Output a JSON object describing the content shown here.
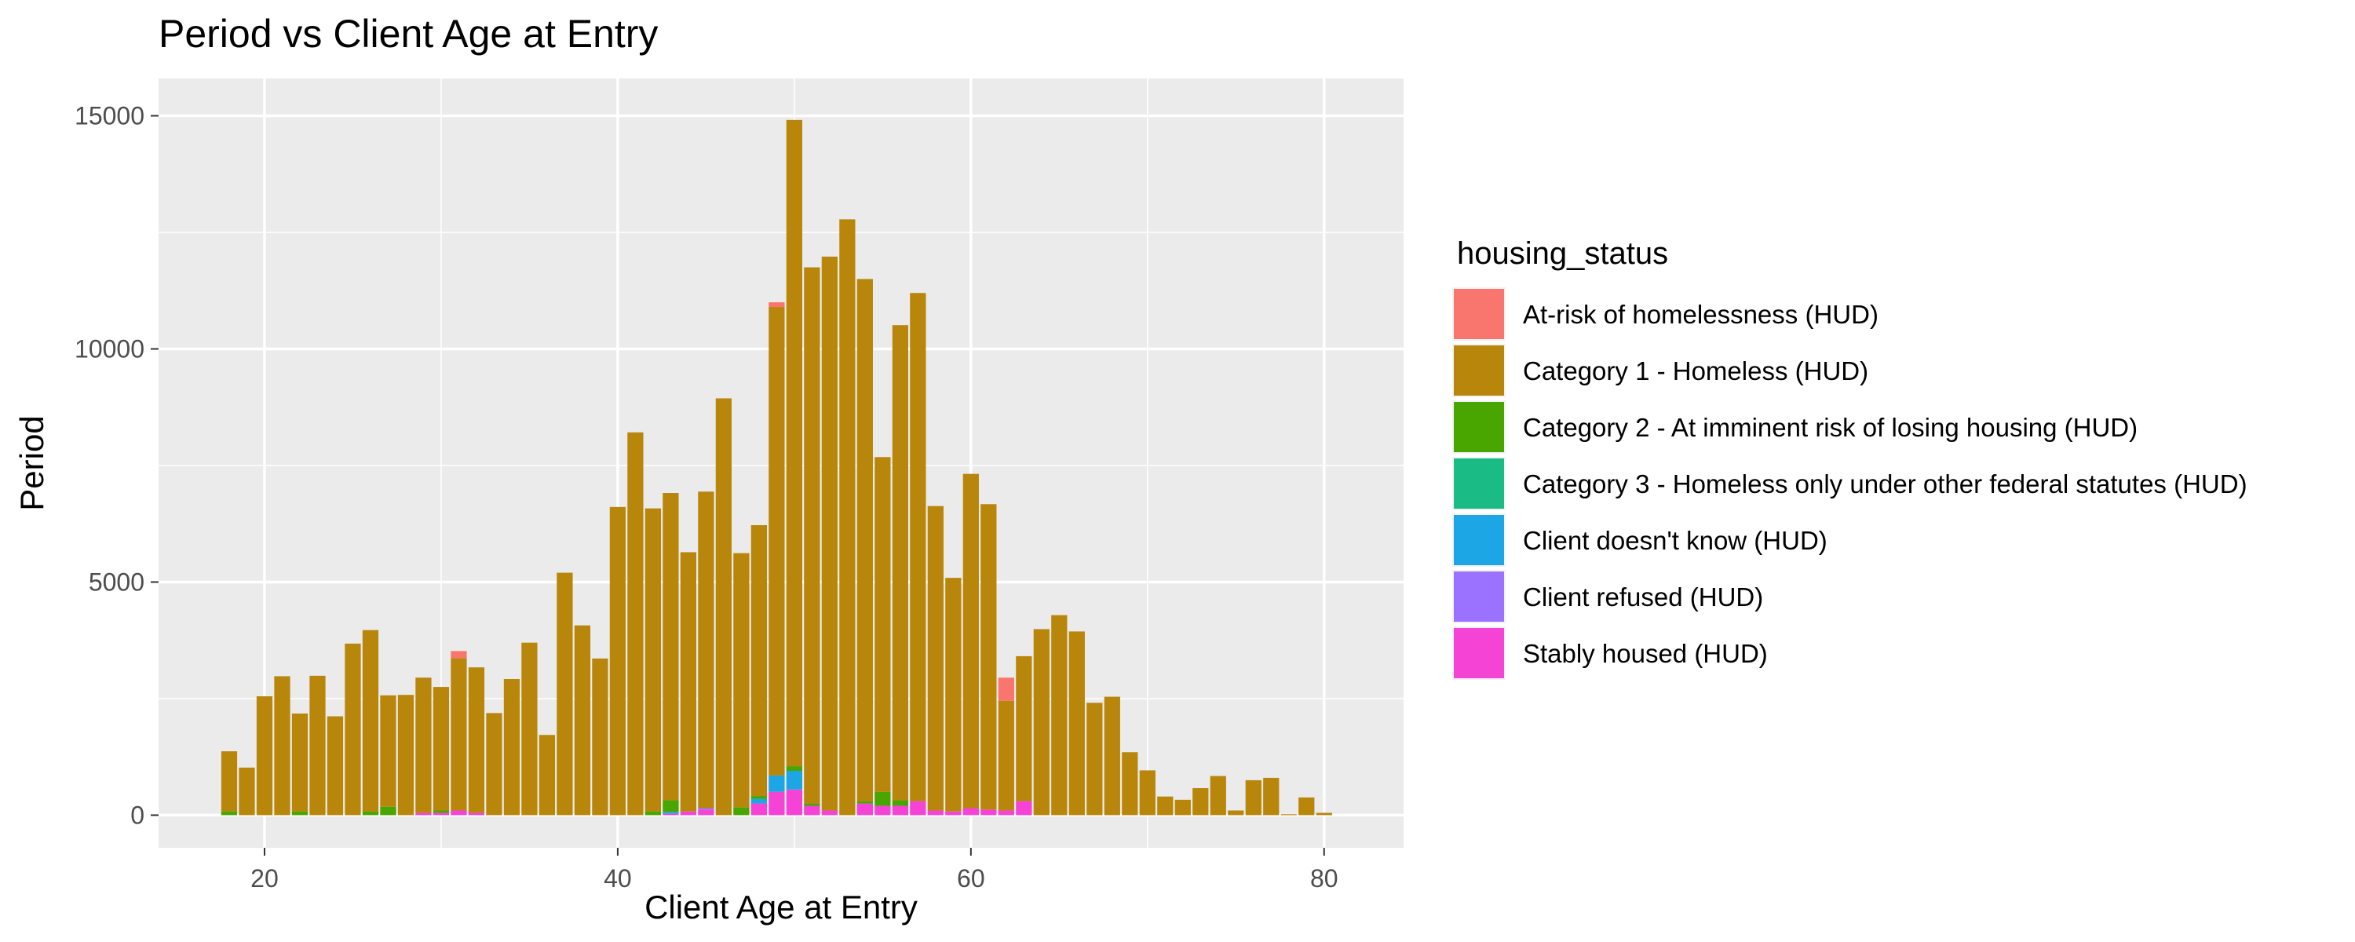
{
  "chart_data": {
    "type": "bar",
    "stacked": true,
    "title": "Period vs Client Age at Entry",
    "xlabel": "Client Age at Entry",
    "ylabel": "Period",
    "xlim": [
      14,
      84.5
    ],
    "ylim": [
      -700,
      15800
    ],
    "xticks": [
      20,
      40,
      60,
      80
    ],
    "yticks": [
      0,
      5000,
      10000,
      15000
    ],
    "grid": true,
    "legend": {
      "title": "housing_status",
      "position": "right",
      "entries": [
        {
          "label": "At-risk of homelessness (HUD)",
          "color": "#F8766D"
        },
        {
          "label": "Category 1 - Homeless (HUD)",
          "color": "#B8860B"
        },
        {
          "label": "Category 2 - At imminent risk of losing housing (HUD)",
          "color": "#49A500"
        },
        {
          "label": "Category 3 - Homeless only under other federal statutes (HUD)",
          "color": "#1ABB84"
        },
        {
          "label": "Client doesn't know (HUD)",
          "color": "#1CA6E6"
        },
        {
          "label": "Client refused (HUD)",
          "color": "#9B72FF"
        },
        {
          "label": "Stably housed (HUD)",
          "color": "#F543D6"
        }
      ]
    },
    "x": [
      18,
      19,
      20,
      21,
      22,
      23,
      24,
      25,
      26,
      27,
      28,
      29,
      30,
      31,
      32,
      33,
      34,
      35,
      36,
      37,
      38,
      39,
      40,
      41,
      42,
      43,
      44,
      45,
      46,
      47,
      48,
      49,
      50,
      51,
      52,
      53,
      54,
      55,
      56,
      57,
      58,
      59,
      60,
      61,
      62,
      63,
      64,
      65,
      66,
      67,
      68,
      69,
      70,
      71,
      72,
      73,
      74,
      75,
      76,
      77,
      78,
      79,
      80,
      81
    ],
    "series": [
      {
        "name": "At-risk of homelessness (HUD)",
        "values": [
          0,
          0,
          0,
          0,
          0,
          0,
          0,
          0,
          0,
          0,
          0,
          0,
          0,
          150,
          0,
          0,
          0,
          0,
          0,
          0,
          0,
          0,
          0,
          0,
          0,
          0,
          0,
          0,
          0,
          0,
          0,
          100,
          0,
          0,
          0,
          0,
          0,
          0,
          0,
          0,
          0,
          0,
          0,
          0,
          500,
          0,
          0,
          0,
          0,
          0,
          0,
          0,
          0,
          0,
          0,
          0,
          0,
          0,
          0,
          0,
          0,
          0,
          0,
          0
        ]
      },
      {
        "name": "Category 1 - Homeless (HUD)",
        "values": [
          1290,
          1020,
          2550,
          2980,
          2100,
          2990,
          2120,
          3680,
          3890,
          2390,
          2580,
          2900,
          2650,
          3270,
          3120,
          2190,
          2920,
          3700,
          1720,
          5200,
          4070,
          3360,
          6610,
          8210,
          6500,
          6590,
          5560,
          6790,
          8940,
          5450,
          5810,
          10050,
          13860,
          11500,
          11880,
          12780,
          11200,
          7180,
          10190,
          10900,
          6530,
          5010,
          7170,
          6550,
          2350,
          3110,
          3990,
          4290,
          3940,
          2410,
          2540,
          1350,
          960,
          400,
          330,
          580,
          840,
          100,
          750,
          800,
          20,
          380,
          50,
          0
        ]
      },
      {
        "name": "Category 2 - At imminent risk of losing housing (HUD)",
        "values": [
          80,
          0,
          0,
          0,
          80,
          0,
          0,
          0,
          80,
          180,
          0,
          0,
          50,
          0,
          0,
          0,
          0,
          0,
          0,
          0,
          0,
          0,
          0,
          0,
          80,
          250,
          0,
          0,
          0,
          170,
          60,
          0,
          100,
          50,
          0,
          0,
          50,
          300,
          120,
          0,
          0,
          0,
          0,
          0,
          0,
          0,
          0,
          0,
          0,
          0,
          0,
          0,
          0,
          0,
          0,
          0,
          0,
          0,
          0,
          0,
          0,
          0,
          0,
          0
        ]
      },
      {
        "name": "Category 3 - Homeless only under other federal statutes (HUD)",
        "values": [
          0,
          0,
          0,
          0,
          0,
          0,
          0,
          0,
          0,
          0,
          0,
          0,
          0,
          0,
          0,
          0,
          0,
          0,
          0,
          0,
          0,
          0,
          0,
          0,
          0,
          0,
          0,
          0,
          0,
          0,
          0,
          0,
          0,
          0,
          0,
          0,
          0,
          0,
          0,
          0,
          0,
          0,
          0,
          0,
          0,
          0,
          0,
          0,
          0,
          0,
          0,
          0,
          0,
          0,
          0,
          0,
          0,
          0,
          0,
          0,
          0,
          0,
          0,
          0
        ]
      },
      {
        "name": "Client doesn't know (HUD)",
        "values": [
          0,
          0,
          0,
          0,
          0,
          0,
          0,
          0,
          0,
          0,
          0,
          0,
          0,
          0,
          0,
          0,
          0,
          0,
          0,
          0,
          0,
          0,
          0,
          0,
          0,
          40,
          0,
          0,
          0,
          0,
          100,
          350,
          400,
          0,
          0,
          0,
          0,
          0,
          0,
          0,
          0,
          0,
          0,
          0,
          0,
          0,
          0,
          0,
          0,
          0,
          0,
          0,
          0,
          0,
          0,
          0,
          0,
          0,
          0,
          0,
          0,
          0,
          0,
          0
        ]
      },
      {
        "name": "Client refused (HUD)",
        "values": [
          0,
          0,
          0,
          0,
          0,
          0,
          0,
          0,
          0,
          0,
          0,
          0,
          0,
          0,
          0,
          0,
          0,
          0,
          0,
          0,
          0,
          0,
          0,
          0,
          0,
          0,
          0,
          30,
          0,
          0,
          0,
          0,
          0,
          0,
          0,
          0,
          0,
          0,
          0,
          0,
          0,
          0,
          0,
          0,
          0,
          0,
          0,
          0,
          0,
          0,
          0,
          0,
          0,
          0,
          0,
          0,
          0,
          0,
          0,
          0,
          0,
          0,
          0,
          0
        ]
      },
      {
        "name": "Stably housed (HUD)",
        "values": [
          0,
          0,
          0,
          0,
          0,
          0,
          0,
          0,
          0,
          0,
          0,
          50,
          50,
          100,
          50,
          0,
          0,
          0,
          0,
          0,
          0,
          0,
          0,
          0,
          0,
          30,
          80,
          120,
          0,
          0,
          250,
          500,
          550,
          200,
          100,
          0,
          250,
          200,
          200,
          300,
          100,
          80,
          150,
          120,
          100,
          300,
          0,
          0,
          0,
          0,
          0,
          0,
          0,
          0,
          0,
          0,
          0,
          0,
          0,
          0,
          0,
          0,
          0,
          0
        ]
      }
    ]
  }
}
